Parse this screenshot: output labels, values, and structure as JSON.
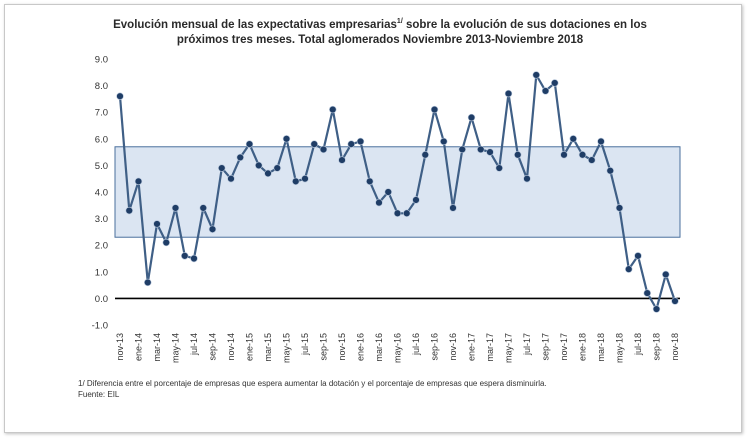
{
  "chart_data": {
    "type": "line",
    "title_line1": "Evolución mensual de las expectativas empresarias",
    "title_sup": "1/",
    "title_line1_rest": " sobre la evolución de sus dotaciones en los",
    "title_line2": "próximos tres meses. Total aglomerados Noviembre  2013-Noviembre  2018",
    "ylim": [
      -1.0,
      9.0
    ],
    "yticks": [
      "9.0",
      "8.0",
      "7.0",
      "6.0",
      "5.0",
      "4.0",
      "3.0",
      "2.0",
      "1.0",
      "0.0",
      "-1.0"
    ],
    "band": [
      2.3,
      5.7
    ],
    "xtick_labels": [
      "nov-13",
      "ene-14",
      "mar-14",
      "may-14",
      "jul-14",
      "sep-14",
      "nov-14",
      "ene-15",
      "mar-15",
      "may-15",
      "jul-15",
      "sep-15",
      "nov-15",
      "ene-16",
      "mar-16",
      "may-16",
      "jul-16",
      "sep-16",
      "nov-16",
      "ene-17",
      "mar-17",
      "may-17",
      "jul-17",
      "sep-17",
      "nov-17",
      "ene-18",
      "mar-18",
      "may-18",
      "jul-18",
      "sep-18",
      "nov-18"
    ],
    "values": [
      7.6,
      3.3,
      4.4,
      0.6,
      2.8,
      2.1,
      3.4,
      1.6,
      1.5,
      3.4,
      2.6,
      4.9,
      4.5,
      5.3,
      5.8,
      5.0,
      4.7,
      4.9,
      6.0,
      4.4,
      4.5,
      5.8,
      5.6,
      7.1,
      5.2,
      5.8,
      5.9,
      4.4,
      3.6,
      4.0,
      3.2,
      3.2,
      3.7,
      5.4,
      7.1,
      5.9,
      3.4,
      5.6,
      6.8,
      5.6,
      5.5,
      4.9,
      7.7,
      5.4,
      4.5,
      8.4,
      7.8,
      8.1,
      5.4,
      6.0,
      5.4,
      5.2,
      5.9,
      4.8,
      3.4,
      1.1,
      1.6,
      0.2,
      -0.4,
      0.9,
      -0.1
    ],
    "colors": {
      "line": "#3f5f86",
      "marker": "#1f3d66",
      "band_fill": "#dbe5f2",
      "band_edge": "#4a6f9c",
      "zero_line": "#000000"
    }
  },
  "footnote": {
    "line1": "1/ Diferencia entre el porcentaje de empresas que espera aumentar la dotación y el porcentaje de empresas que espera disminuirla.",
    "line2": "Fuente: EIL"
  }
}
